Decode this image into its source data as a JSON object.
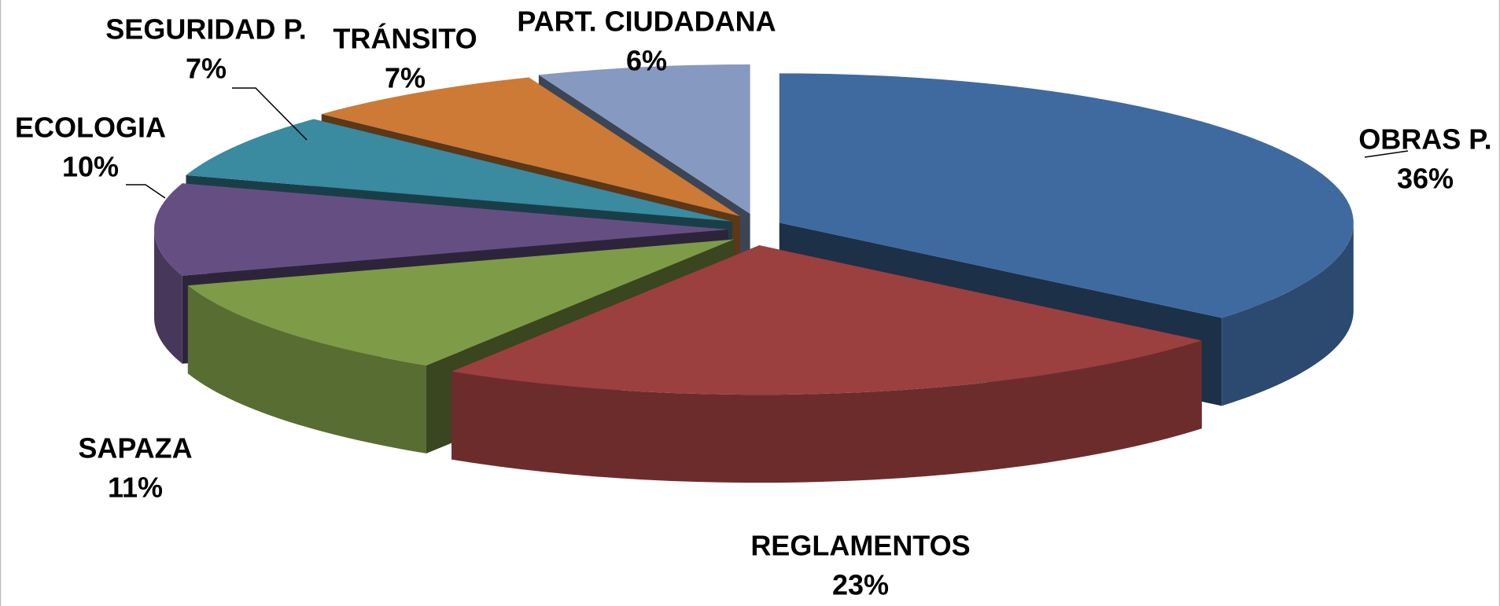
{
  "chart_data": {
    "type": "pie3d",
    "categories": [
      "OBRAS P.",
      "REGLAMENTOS",
      "SAPAZA",
      "ECOLOGIA",
      "SEGURIDAD P.",
      "TRÁNSITO",
      "PART. CIUDADANA"
    ],
    "values": [
      36,
      23,
      11,
      10,
      7,
      7,
      6
    ],
    "value_labels": [
      "36%",
      "23%",
      "11%",
      "10%",
      "7%",
      "7%",
      "6%"
    ],
    "colors": [
      "#3f6aa0",
      "#9c3f3f",
      "#7e9b48",
      "#654f82",
      "#3a8aa0",
      "#cc7a35",
      "#8699c0"
    ]
  }
}
